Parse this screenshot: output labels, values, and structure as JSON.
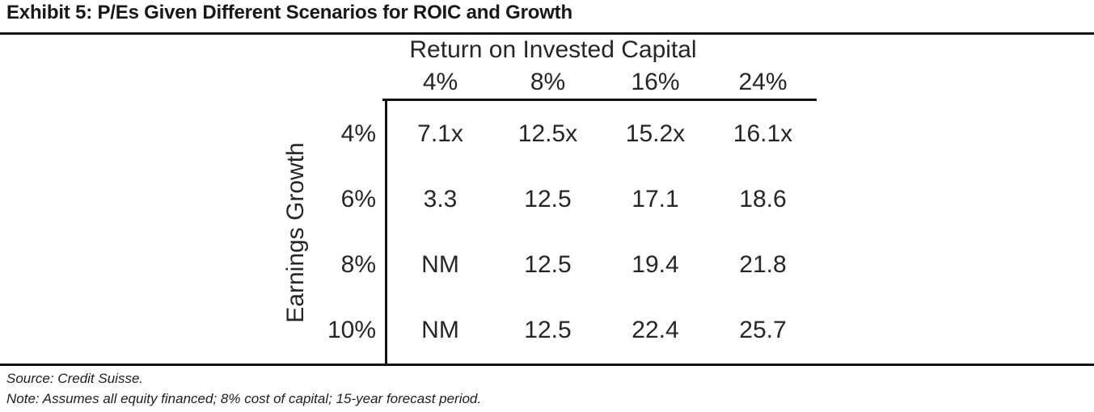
{
  "exhibit": {
    "title": "Exhibit 5: P/Es Given Different Scenarios for ROIC and Growth",
    "column_group_label": "Return on Invested Capital",
    "row_group_label": "Earnings Growth"
  },
  "chart_data": {
    "type": "table",
    "title": "Exhibit 5: P/Es Given Different Scenarios for ROIC and Growth",
    "columns_axis_label": "Return on Invested Capital",
    "rows_axis_label": "Earnings Growth",
    "columns": [
      "4%",
      "8%",
      "16%",
      "24%"
    ],
    "row_labels": [
      "4%",
      "6%",
      "8%",
      "10%"
    ],
    "values": [
      [
        "7.1x",
        "12.5x",
        "15.2x",
        "16.1x"
      ],
      [
        "3.3",
        "12.5",
        "17.1",
        "18.6"
      ],
      [
        "NM",
        "12.5",
        "19.4",
        "21.8"
      ],
      [
        "NM",
        "12.5",
        "22.4",
        "25.7"
      ]
    ],
    "unit": "P/E multiple (x)",
    "grid": "partial: left border and top border of data area only",
    "legend_position": "none"
  },
  "footer": {
    "source": "Source: Credit Suisse.",
    "note": "Note: Assumes all equity financed; 8% cost of capital; 15-year forecast period."
  },
  "colors": {
    "text": "#26262a",
    "title_text": "#17171c",
    "rule": "#111116",
    "background": "#ffffff"
  }
}
